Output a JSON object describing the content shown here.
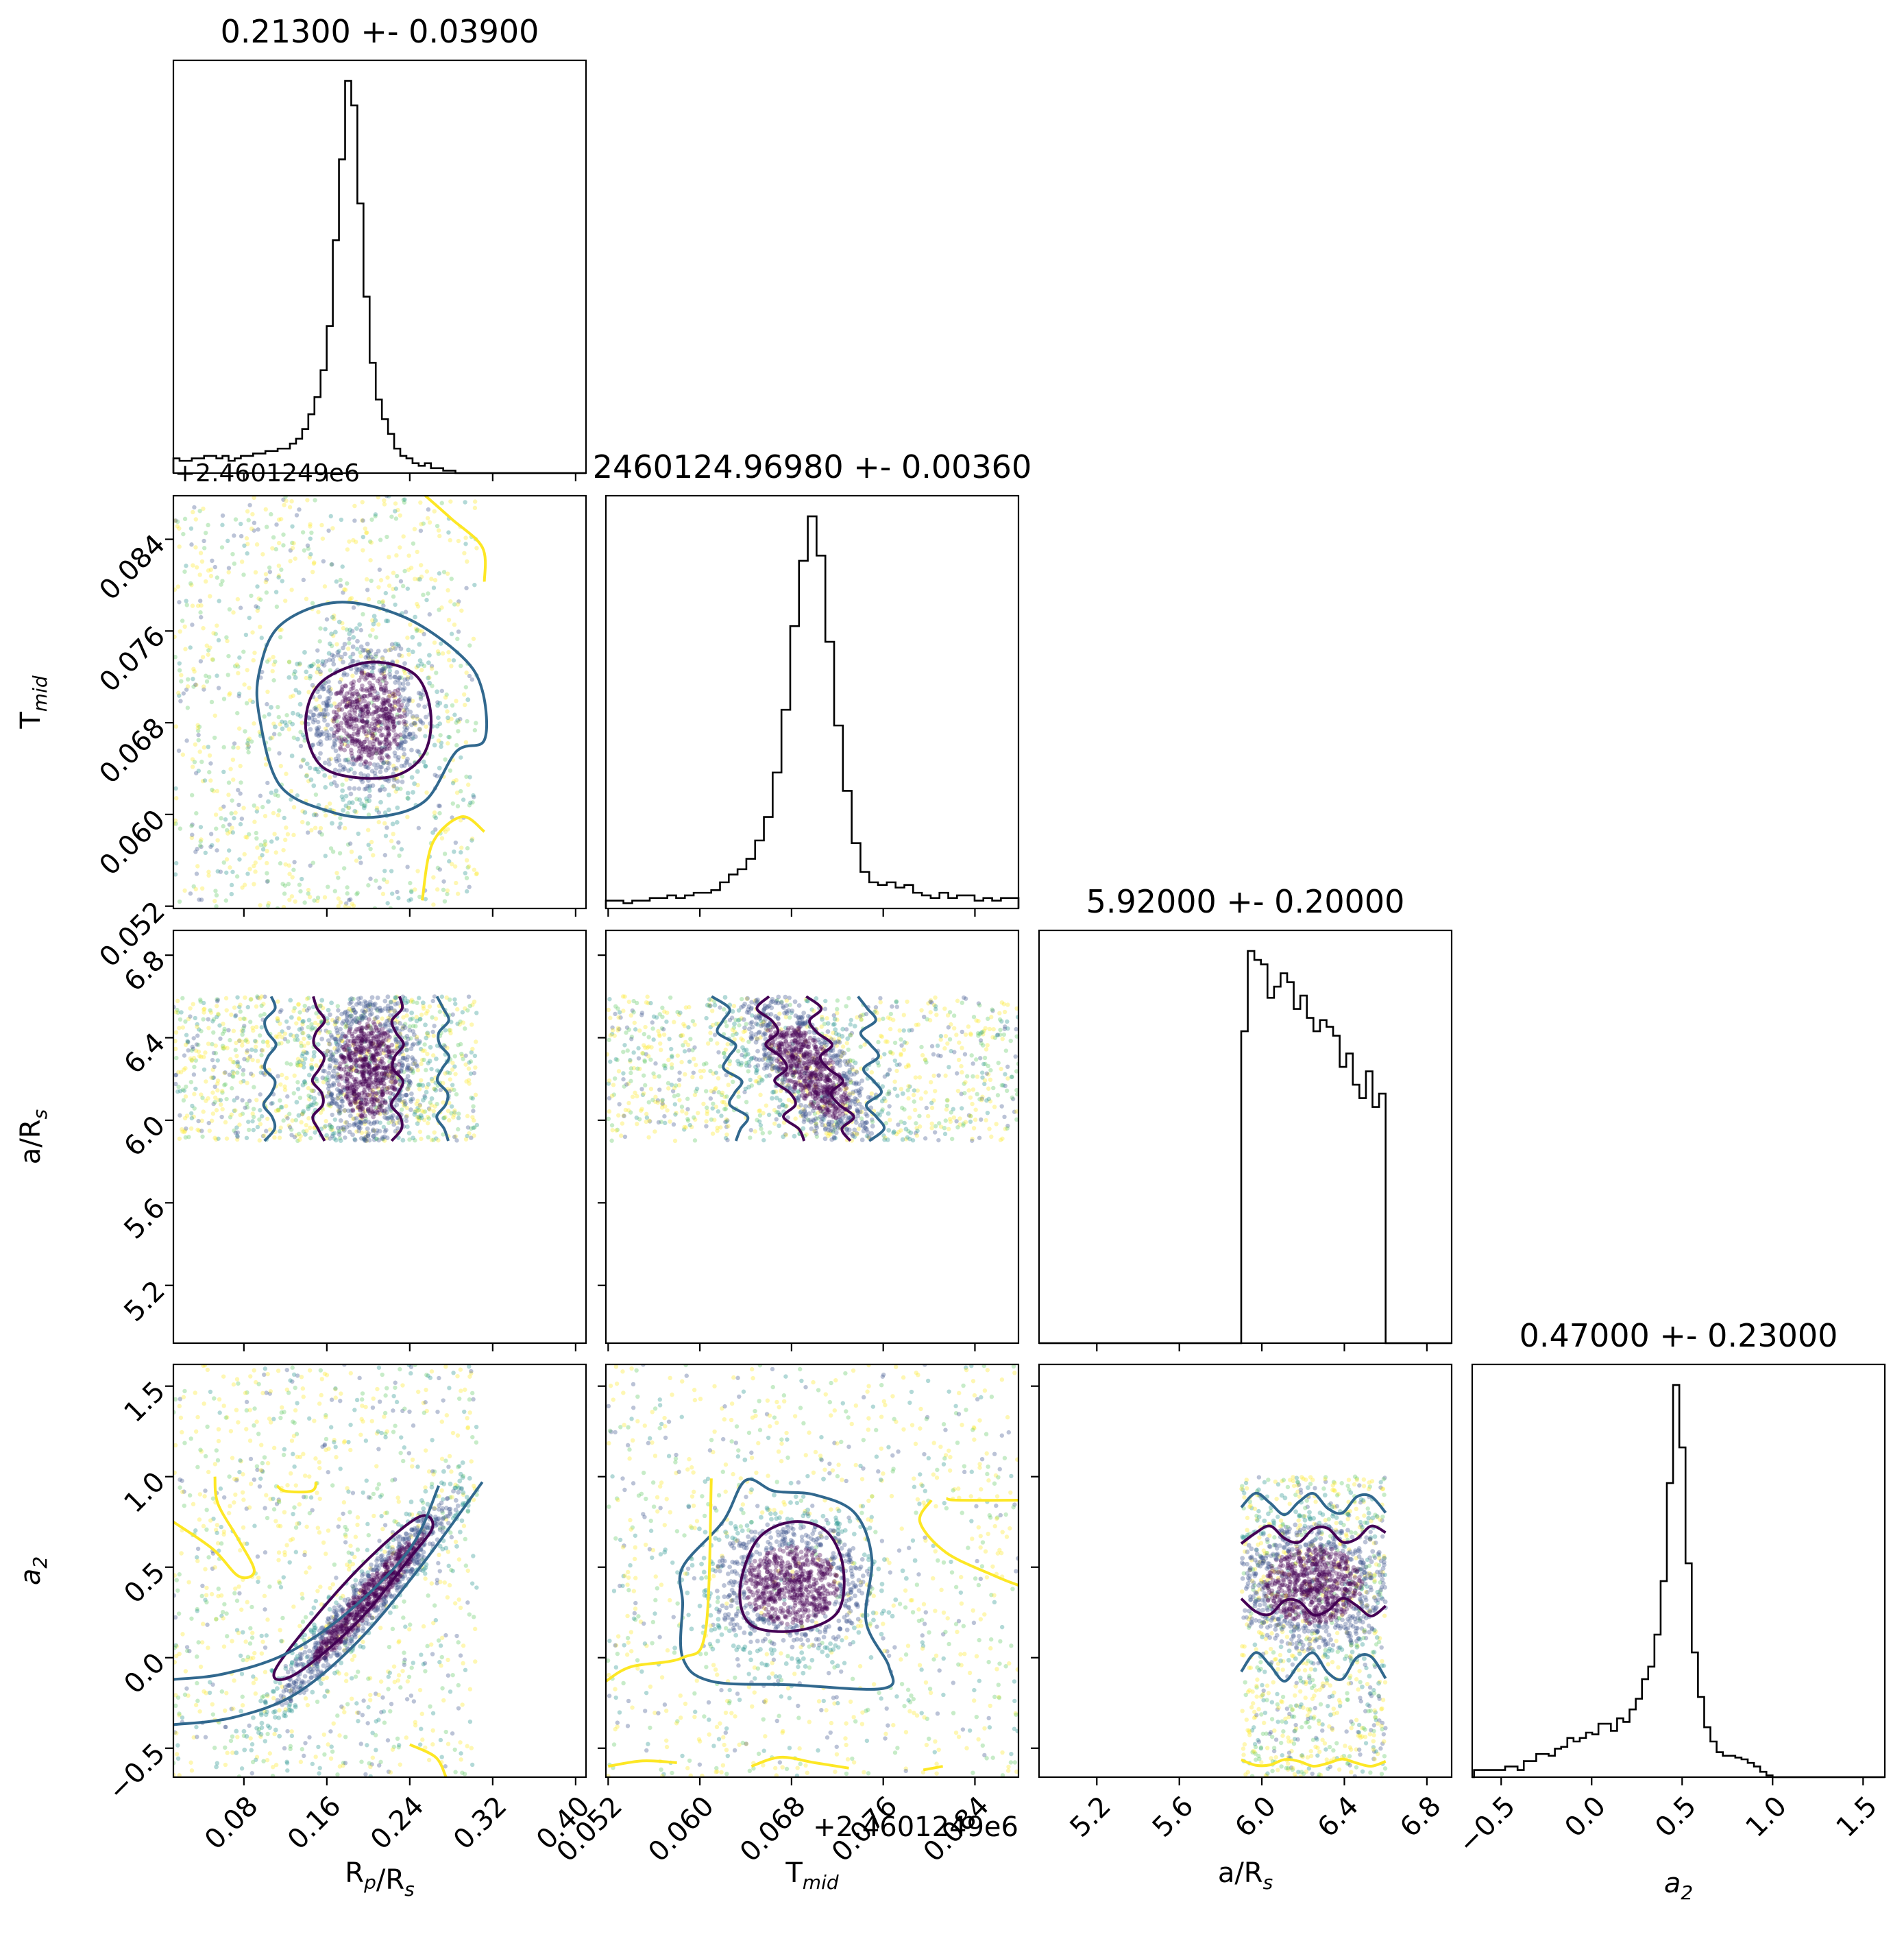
{
  "chart_data": {
    "type": "corner",
    "parameters": [
      {
        "key": "rp",
        "label_main": "R",
        "label_sub1": "p",
        "label_mid": "/R",
        "label_sub2": "s",
        "lim": [
          0.012,
          0.41
        ],
        "ticks": [
          0.08,
          0.16,
          0.24,
          0.32,
          0.4
        ],
        "tick_labels": [
          "0.08",
          "0.16",
          "0.24",
          "0.32",
          "0.40"
        ]
      },
      {
        "key": "tmid",
        "label_main": "T",
        "label_sub1": "mid",
        "label_mid": "",
        "label_sub2": "",
        "lim": [
          0.0518,
          0.0878
        ],
        "offset_text": "+2.4601249e6",
        "ticks": [
          0.052,
          0.06,
          0.068,
          0.076,
          0.084
        ],
        "tick_labels": [
          "0.052",
          "0.060",
          "0.068",
          "0.076",
          "0.084"
        ]
      },
      {
        "key": "ars",
        "label_main": "a/R",
        "label_sub1": "",
        "label_mid": "",
        "label_sub2": "s",
        "lim": [
          4.92,
          6.92
        ],
        "ticks": [
          5.2,
          5.6,
          6.0,
          6.4,
          6.8
        ],
        "tick_labels": [
          "5.2",
          "5.6",
          "6.0",
          "6.4",
          "6.8"
        ]
      },
      {
        "key": "a2",
        "label_main": "a",
        "label_sub1": "2",
        "label_mid": "",
        "label_sub2": "",
        "lim": [
          -0.66,
          1.62
        ],
        "ticks": [
          -0.5,
          0.0,
          0.5,
          1.0,
          1.5
        ],
        "tick_labels": [
          "−0.5",
          "0.0",
          "0.5",
          "1.0",
          "1.5"
        ]
      }
    ],
    "titles": [
      "0.21300 +- 0.03900",
      "2460124.96980 +- 0.00360",
      "5.92000 +- 0.20000",
      "0.47000 +- 0.23000"
    ],
    "histograms": [
      {
        "edges_from": 0.012,
        "edges_to": 0.29,
        "counts": [
          6,
          5,
          5,
          6,
          6,
          7,
          7,
          6,
          7,
          5,
          6,
          7,
          7,
          8,
          8,
          9,
          9,
          10,
          10,
          12,
          14,
          18,
          24,
          31,
          42,
          60,
          95,
          128,
          160,
          150,
          110,
          72,
          45,
          30,
          22,
          16,
          10,
          7,
          6,
          4,
          3,
          4,
          2,
          2,
          1,
          1,
          0
        ]
      },
      {
        "edges_from": 0.0518,
        "edges_to": 0.0878,
        "counts": [
          3,
          3,
          2,
          3,
          3,
          4,
          4,
          5,
          4,
          5,
          6,
          6,
          7,
          10,
          13,
          15,
          19,
          26,
          35,
          52,
          76,
          108,
          133,
          150,
          135,
          102,
          70,
          45,
          25,
          14,
          10,
          9,
          10,
          8,
          9,
          6,
          5,
          4,
          6,
          4,
          5,
          5,
          3,
          4,
          3,
          4,
          4
        ]
      },
      {
        "edges_from": 5.9,
        "edges_to": 6.6,
        "counts": [
          140,
          176,
          172,
          170,
          155,
          160,
          166,
          162,
          150,
          156,
          146,
          140,
          145,
          142,
          138,
          124,
          130,
          116,
          110,
          122,
          106,
          112
        ]
      },
      {
        "edges_from": -0.65,
        "edges_to": 1.0,
        "counts": [
          4,
          4,
          4,
          4,
          4,
          6,
          6,
          4,
          9,
          9,
          13,
          13,
          12,
          16,
          17,
          22,
          20,
          22,
          25,
          24,
          30,
          30,
          26,
          33,
          31,
          38,
          44,
          55,
          62,
          80,
          110,
          165,
          220,
          185,
          120,
          70,
          45,
          28,
          20,
          14,
          12,
          12,
          11,
          10,
          8,
          6,
          3,
          1
        ]
      }
    ],
    "scatter_panels": [
      {
        "x": "rp",
        "y": "tmid",
        "cores": [
          {
            "cx": 0.2,
            "cy": 0.0685,
            "sx": 0.03,
            "sy": 0.0035,
            "rho": 0.0,
            "n": 900
          }
        ],
        "uniform_n": 1100,
        "contours": [
          {
            "level": "inner",
            "pts": [
              [
                0.14,
                0.0672
              ],
              [
                0.145,
                0.0703
              ],
              [
                0.165,
                0.0722
              ],
              [
                0.205,
                0.0733
              ],
              [
                0.245,
                0.0722
              ],
              [
                0.26,
                0.069
              ],
              [
                0.255,
                0.0655
              ],
              [
                0.23,
                0.0635
              ],
              [
                0.19,
                0.0632
              ],
              [
                0.155,
                0.0642
              ]
            ]
          },
          {
            "level": "outer",
            "pts": [
              [
                0.095,
                0.0685
              ],
              [
                0.095,
                0.0725
              ],
              [
                0.115,
                0.0765
              ],
              [
                0.17,
                0.0785
              ],
              [
                0.235,
                0.0772
              ],
              [
                0.29,
                0.0738
              ],
              [
                0.31,
                0.0708
              ],
              [
                0.312,
                0.0665
              ],
              [
                0.285,
                0.0655
              ],
              [
                0.255,
                0.0612
              ],
              [
                0.21,
                0.0598
              ],
              [
                0.165,
                0.0602
              ],
              [
                0.115,
                0.0625
              ]
            ]
          }
        ],
        "open_lines": [
          [
            [
              0.255,
              0.0878
            ],
            [
              0.28,
              0.0858
            ],
            [
              0.31,
              0.0833
            ],
            [
              0.312,
              0.0803
            ]
          ],
          [
            [
              0.312,
              0.0585
            ],
            [
              0.29,
              0.0598
            ],
            [
              0.262,
              0.0575
            ],
            [
              0.252,
              0.0525
            ]
          ]
        ]
      },
      {
        "x": "rp",
        "y": "ars",
        "cores": [
          {
            "cx": 0.2,
            "cy": 6.25,
            "sx": 0.025,
            "sy": 0.2,
            "rho": 0.0,
            "n": 1100
          }
        ],
        "uniform_n": 1000,
        "ylim_cut": [
          5.9,
          6.6
        ],
        "vlines": [
          {
            "level": "outer",
            "x": 0.105
          },
          {
            "level": "inner",
            "x": 0.152
          },
          {
            "level": "inner",
            "x": 0.228
          },
          {
            "level": "outer",
            "x": 0.272
          }
        ]
      },
      {
        "x": "tmid",
        "y": "ars",
        "cores": [
          {
            "cx": 0.0695,
            "cy": 6.25,
            "sx": 0.003,
            "sy": 0.2,
            "rho": -0.7,
            "n": 1100
          }
        ],
        "uniform_n": 1000,
        "ylim_cut": [
          5.9,
          6.6
        ],
        "slanted": [
          {
            "level": "outer",
            "x_top": 0.0617,
            "x_bot": 0.0638
          },
          {
            "level": "inner",
            "x_top": 0.0655,
            "x_bot": 0.0686
          },
          {
            "level": "inner",
            "x_top": 0.0695,
            "x_bot": 0.0733
          },
          {
            "level": "outer",
            "x_top": 0.0745,
            "x_bot": 0.0755
          }
        ]
      },
      {
        "x": "rp",
        "y": "a2",
        "cores": [
          {
            "cx": 0.2,
            "cy": 0.33,
            "sx": 0.045,
            "sy": 0.3,
            "rho": 0.96,
            "n": 1200
          }
        ],
        "uniform_n": 1000,
        "xlim_cut": [
          0.012,
          0.29
        ],
        "contours": [
          {
            "level": "inner",
            "pts": [
              [
                0.11,
                -0.07
              ],
              [
                0.13,
                -0.09
              ],
              [
                0.19,
                0.2
              ],
              [
                0.24,
                0.55
              ],
              [
                0.262,
                0.72
              ],
              [
                0.25,
                0.78
              ],
              [
                0.21,
                0.6
              ],
              [
                0.16,
                0.3
              ]
            ]
          },
          {
            "level": "outer_top",
            "pts": [
              [
                0.012,
                -0.12
              ],
              [
                0.06,
                -0.09
              ],
              [
                0.12,
                0.02
              ],
              [
                0.18,
                0.25
              ],
              [
                0.24,
                0.6
              ],
              [
                0.268,
                0.95
              ]
            ]
          },
          {
            "level": "outer_bot",
            "pts": [
              [
                0.012,
                -0.37
              ],
              [
                0.07,
                -0.33
              ],
              [
                0.13,
                -0.2
              ],
              [
                0.19,
                0.09
              ],
              [
                0.25,
                0.5
              ],
              [
                0.31,
                0.97
              ]
            ]
          }
        ],
        "open_lines": [
          [
            [
              0.012,
              0.75
            ],
            [
              0.05,
              0.6
            ],
            [
              0.075,
              0.45
            ],
            [
              0.09,
              0.48
            ],
            [
              0.075,
              0.65
            ],
            [
              0.055,
              0.85
            ],
            [
              0.052,
              1.0
            ]
          ],
          [
            [
              0.112,
              0.95
            ],
            [
              0.12,
              0.92
            ],
            [
              0.145,
              0.92
            ],
            [
              0.15,
              0.97
            ]
          ],
          [
            [
              0.24,
              -0.48
            ],
            [
              0.265,
              -0.55
            ],
            [
              0.275,
              -0.66
            ]
          ]
        ]
      },
      {
        "x": "tmid",
        "y": "a2",
        "cores": [
          {
            "cx": 0.068,
            "cy": 0.4,
            "sx": 0.0035,
            "sy": 0.18,
            "rho": 0.0,
            "n": 1100
          }
        ],
        "uniform_n": 1000,
        "contours": [
          {
            "level": "inner",
            "pts": [
              [
                0.0635,
                0.38
              ],
              [
                0.065,
                0.65
              ],
              [
                0.068,
                0.75
              ],
              [
                0.071,
                0.7
              ],
              [
                0.0725,
                0.5
              ],
              [
                0.072,
                0.25
              ],
              [
                0.0685,
                0.15
              ],
              [
                0.0645,
                0.18
              ]
            ]
          },
          {
            "level": "outer",
            "pts": [
              [
                0.0585,
                0.5
              ],
              [
                0.062,
                0.75
              ],
              [
                0.064,
                0.98
              ],
              [
                0.0665,
                0.92
              ],
              [
                0.07,
                0.9
              ],
              [
                0.0735,
                0.8
              ],
              [
                0.075,
                0.55
              ],
              [
                0.0745,
                0.2
              ],
              [
                0.0765,
                -0.05
              ],
              [
                0.076,
                -0.17
              ],
              [
                0.068,
                -0.15
              ],
              [
                0.061,
                -0.13
              ],
              [
                0.0585,
                0.0
              ],
              [
                0.0585,
                0.3
              ]
            ]
          }
        ],
        "open_lines": [
          [
            [
              0.0518,
              -0.13
            ],
            [
              0.054,
              -0.05
            ],
            [
              0.0585,
              0.0
            ],
            [
              0.0605,
              0.15
            ],
            [
              0.061,
              0.99
            ]
          ],
          [
            [
              0.0815,
              0.88
            ],
            [
              0.0825,
              0.87
            ],
            [
              0.0878,
              0.87
            ]
          ],
          [
            [
              0.0802,
              0.87
            ],
            [
              0.0792,
              0.75
            ],
            [
              0.0815,
              0.58
            ],
            [
              0.0858,
              0.45
            ],
            [
              0.0878,
              0.4
            ]
          ],
          [
            [
              0.052,
              -0.6
            ],
            [
              0.055,
              -0.57
            ],
            [
              0.058,
              -0.58
            ]
          ],
          [
            [
              0.0645,
              -0.6
            ],
            [
              0.067,
              -0.55
            ],
            [
              0.07,
              -0.58
            ],
            [
              0.073,
              -0.61
            ]
          ],
          [
            [
              0.0795,
              -0.62
            ],
            [
              0.0812,
              -0.6
            ]
          ]
        ]
      },
      {
        "x": "ars",
        "y": "a2",
        "cores": [
          {
            "cx": 6.25,
            "cy": 0.4,
            "sx": 0.2,
            "sy": 0.18,
            "rho": 0.0,
            "n": 1200
          }
        ],
        "uniform_n": 900,
        "xlim_cut": [
          5.9,
          6.6
        ],
        "ylim_cut": [
          -0.66,
          1.0
        ],
        "hlines": [
          {
            "level": "outer",
            "y": 0.85,
            "wave": 0.06
          },
          {
            "level": "inner",
            "y": 0.68,
            "wave": 0.05
          },
          {
            "level": "inner",
            "y": 0.28,
            "wave": 0.05
          },
          {
            "level": "outer",
            "y": -0.05,
            "wave": 0.08
          },
          {
            "level": "outer_low",
            "y": -0.58,
            "wave": 0.02
          }
        ]
      }
    ],
    "colors": {
      "inner": "#440154",
      "outer": "#31688e",
      "outer_top": "#31688e",
      "outer_bot": "#31688e",
      "outer_low": "#fde725",
      "yellow": "#fde725",
      "hist": "#000000"
    },
    "point_palette": [
      "#440154",
      "#3b528b",
      "#21918c",
      "#5ec962",
      "#fde725"
    ]
  }
}
